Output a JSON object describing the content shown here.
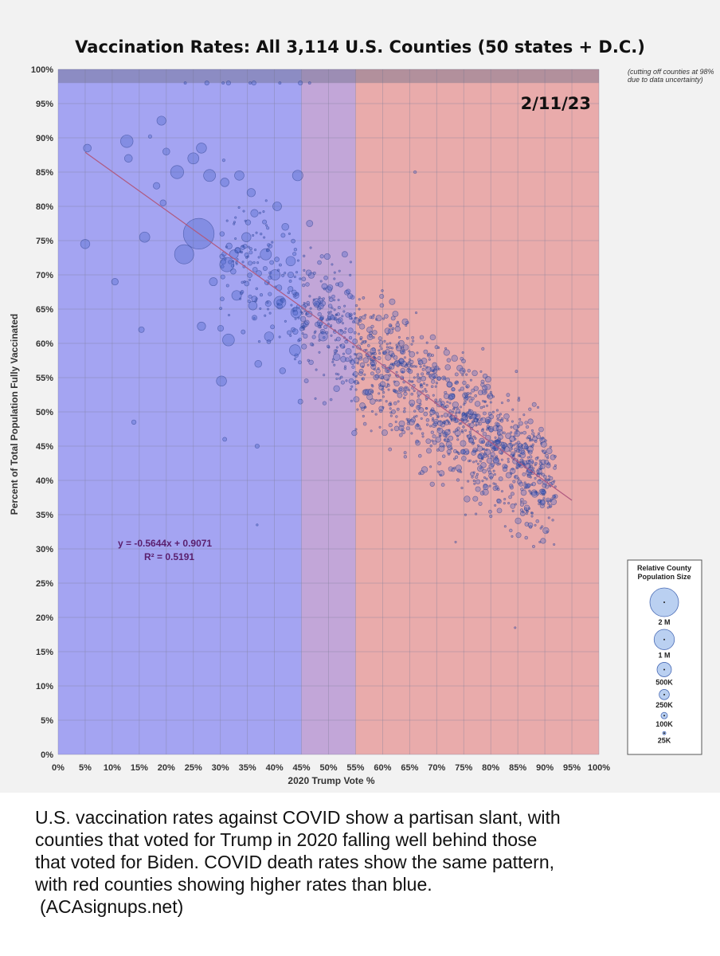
{
  "chart_data": {
    "type": "scatter",
    "title": "Vaccination Rates: All 3,114 U.S. Counties (50 states + D.C.)",
    "xlabel": "2020 Trump Vote %",
    "ylabel": "Percent of Total Population Fully Vaccinated",
    "xlim": [
      0,
      100
    ],
    "ylim": [
      0,
      100
    ],
    "x_ticks": [
      "0%",
      "5%",
      "10%",
      "15%",
      "20%",
      "25%",
      "30%",
      "35%",
      "40%",
      "45%",
      "50%",
      "55%",
      "60%",
      "65%",
      "70%",
      "75%",
      "80%",
      "85%",
      "90%",
      "95%",
      "100%"
    ],
    "y_ticks": [
      "0%",
      "5%",
      "10%",
      "15%",
      "20%",
      "25%",
      "30%",
      "35%",
      "40%",
      "45%",
      "50%",
      "55%",
      "60%",
      "65%",
      "70%",
      "75%",
      "80%",
      "85%",
      "90%",
      "95%",
      "100%"
    ],
    "grid": true,
    "date_label": "2/11/23",
    "cutoff_note_line1": "(cutting off counties at 98%",
    "cutoff_note_line2": "due to data uncertainty)",
    "cutoff_y": 98,
    "regions": [
      {
        "x_from": 0,
        "x_to": 45,
        "color": "#a4a4f2"
      },
      {
        "x_from": 45,
        "x_to": 55,
        "color": "#c2a6d8"
      },
      {
        "x_from": 55,
        "x_to": 100,
        "color": "#e9abab"
      }
    ],
    "trendline": {
      "equation": "y = -0.5644x + 0.9071",
      "r_squared": "R² = 0.5191",
      "slope": -0.5644,
      "intercept": 0.9071,
      "x_range": [
        5,
        95
      ],
      "color": "#b05a80"
    },
    "legend": {
      "title_line1": "Relative County",
      "title_line2": "Population Size",
      "position": "right",
      "items": [
        {
          "label": "2 M",
          "size": 2000000
        },
        {
          "label": "1 M",
          "size": 1000000
        },
        {
          "label": "500K",
          "size": 500000
        },
        {
          "label": "250K",
          "size": 250000
        },
        {
          "label": "100K",
          "size": 100000
        },
        {
          "label": "25K",
          "size": 25000
        }
      ]
    },
    "bubble_color": "#3d5cc4",
    "points": [
      {
        "x": 5.4,
        "y": 88.5,
        "pop": 150000
      },
      {
        "x": 12.7,
        "y": 89.5,
        "pop": 380000
      },
      {
        "x": 13.0,
        "y": 87.0,
        "pop": 150000
      },
      {
        "x": 19.1,
        "y": 92.5,
        "pop": 200000
      },
      {
        "x": 17.0,
        "y": 90.2,
        "pop": 30000
      },
      {
        "x": 20.0,
        "y": 88.0,
        "pop": 120000
      },
      {
        "x": 22.0,
        "y": 85.0,
        "pop": 420000
      },
      {
        "x": 25.0,
        "y": 87.0,
        "pop": 300000
      },
      {
        "x": 26.5,
        "y": 88.5,
        "pop": 250000
      },
      {
        "x": 28.0,
        "y": 84.5,
        "pop": 350000
      },
      {
        "x": 30.8,
        "y": 83.5,
        "pop": 180000
      },
      {
        "x": 33.5,
        "y": 84.5,
        "pop": 220000
      },
      {
        "x": 18.2,
        "y": 83.0,
        "pop": 110000
      },
      {
        "x": 19.4,
        "y": 80.5,
        "pop": 90000
      },
      {
        "x": 35.7,
        "y": 82.0,
        "pop": 170000
      },
      {
        "x": 36.3,
        "y": 79.0,
        "pop": 140000
      },
      {
        "x": 40.5,
        "y": 80.0,
        "pop": 190000
      },
      {
        "x": 42.0,
        "y": 77.0,
        "pop": 120000
      },
      {
        "x": 44.3,
        "y": 84.5,
        "pop": 270000
      },
      {
        "x": 26.0,
        "y": 76.0,
        "pop": 2300000
      },
      {
        "x": 23.3,
        "y": 73.0,
        "pop": 900000
      },
      {
        "x": 16.0,
        "y": 75.5,
        "pop": 260000
      },
      {
        "x": 5.0,
        "y": 74.5,
        "pop": 210000
      },
      {
        "x": 10.5,
        "y": 69.0,
        "pop": 110000
      },
      {
        "x": 31.2,
        "y": 71.5,
        "pop": 500000
      },
      {
        "x": 32.5,
        "y": 73.0,
        "pop": 190000
      },
      {
        "x": 34.8,
        "y": 75.5,
        "pop": 210000
      },
      {
        "x": 38.4,
        "y": 73.0,
        "pop": 310000
      },
      {
        "x": 40.1,
        "y": 70.0,
        "pop": 260000
      },
      {
        "x": 43.0,
        "y": 72.0,
        "pop": 220000
      },
      {
        "x": 28.7,
        "y": 69.0,
        "pop": 160000
      },
      {
        "x": 33.0,
        "y": 67.0,
        "pop": 230000
      },
      {
        "x": 36.0,
        "y": 65.5,
        "pop": 180000
      },
      {
        "x": 41.0,
        "y": 66.0,
        "pop": 350000
      },
      {
        "x": 44.0,
        "y": 64.5,
        "pop": 270000
      },
      {
        "x": 31.5,
        "y": 60.5,
        "pop": 340000
      },
      {
        "x": 26.5,
        "y": 62.5,
        "pop": 170000
      },
      {
        "x": 15.4,
        "y": 62.0,
        "pop": 80000
      },
      {
        "x": 39.0,
        "y": 61.0,
        "pop": 210000
      },
      {
        "x": 43.8,
        "y": 59.0,
        "pop": 300000
      },
      {
        "x": 30.2,
        "y": 54.5,
        "pop": 250000
      },
      {
        "x": 37.0,
        "y": 57.0,
        "pop": 120000
      },
      {
        "x": 41.5,
        "y": 56.0,
        "pop": 90000
      },
      {
        "x": 14.0,
        "y": 48.5,
        "pop": 50000
      },
      {
        "x": 30.8,
        "y": 46.0,
        "pop": 40000
      },
      {
        "x": 36.8,
        "y": 45.0,
        "pop": 45000
      },
      {
        "x": 44.8,
        "y": 51.5,
        "pop": 60000
      },
      {
        "x": 47.8,
        "y": 66.0,
        "pop": 140000
      },
      {
        "x": 49.0,
        "y": 61.0,
        "pop": 200000
      },
      {
        "x": 51.5,
        "y": 58.0,
        "pop": 120000
      },
      {
        "x": 46.5,
        "y": 77.5,
        "pop": 100000
      },
      {
        "x": 53.0,
        "y": 73.0,
        "pop": 80000
      },
      {
        "x": 54.2,
        "y": 54.5,
        "pop": 60000
      },
      {
        "x": 66.0,
        "y": 85.0,
        "pop": 20000
      },
      {
        "x": 36.8,
        "y": 33.5,
        "pop": 10000
      },
      {
        "x": 73.5,
        "y": 31.0,
        "pop": 8000
      },
      {
        "x": 84.5,
        "y": 18.5,
        "pop": 6000
      }
    ],
    "cloud_seed": 7,
    "cloud_count": 1400
  },
  "caption": {
    "line1": "U.S. vaccination rates against COVID show a partisan slant, with",
    "line2": "counties that voted for Trump in 2020 falling well behind those",
    "line3": "that voted for Biden. COVID death rates show the same pattern,",
    "line4": "with red counties showing higher rates than blue.",
    "source": "(ACAsignups.net)"
  }
}
